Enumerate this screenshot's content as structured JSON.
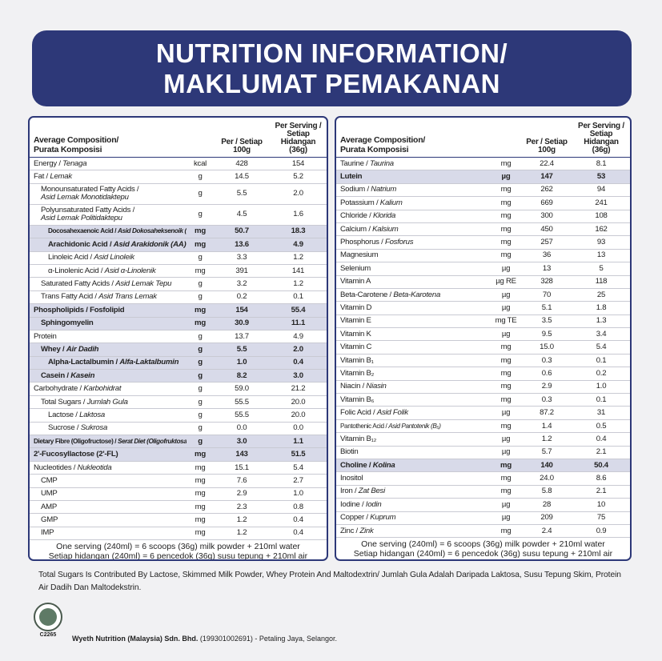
{
  "header": {
    "line1": "NUTRITION INFORMATION/",
    "line2": "MAKLUMAT PEMAKANAN"
  },
  "tables": [
    {
      "head": {
        "name1": "Average Composition/",
        "name2": "Purata Komposisi",
        "per100": "Per / Setiap 100g",
        "serving": "Per Serving / Setiap Hidangan (36g)"
      },
      "rows": [
        {
          "name": "Energy /",
          "ms": "Tenaga",
          "unit": "kcal",
          "per100": "428",
          "serving": "154"
        },
        {
          "name": "Fat /",
          "ms": "Lemak",
          "unit": "g",
          "per100": "14.5",
          "serving": "5.2"
        },
        {
          "name": "Monounsaturated Fatty Acids /",
          "ms": "Asid Lemak Monotidaktepu",
          "unit": "g",
          "per100": "5.5",
          "serving": "2.0"
        },
        {
          "name": "Polyunsaturated Fatty Acids /",
          "ms": "Asid Lemak Politidaktepu",
          "unit": "g",
          "per100": "4.5",
          "serving": "1.6"
        },
        {
          "name": "Docosahexaenoic Acid /",
          "ms": "Asid Dokosaheksenoik (DHA)",
          "unit": "mg",
          "per100": "50.7",
          "serving": "18.3"
        },
        {
          "name": "Arachidonic Acid /",
          "ms": "Asid Arakidonik (AA)",
          "unit": "mg",
          "per100": "13.6",
          "serving": "4.9"
        },
        {
          "name": "Linoleic Acid /",
          "ms": "Asid Linoleik",
          "unit": "g",
          "per100": "3.3",
          "serving": "1.2"
        },
        {
          "name": "α-Linolenic Acid /",
          "ms": "Asid α-Linolenik",
          "unit": "mg",
          "per100": "391",
          "serving": "141"
        },
        {
          "name": "Saturated Fatty Acids /",
          "ms": "Asid Lemak Tepu",
          "unit": "g",
          "per100": "3.2",
          "serving": "1.2"
        },
        {
          "name": "Trans Fatty Acid /",
          "ms": "Asid Trans Lemak",
          "unit": "g",
          "per100": "0.2",
          "serving": "0.1"
        },
        {
          "name": "Phospholipids / Fosfolipid",
          "unit": "mg",
          "per100": "154",
          "serving": "55.4"
        },
        {
          "name": "Sphingomyelin",
          "unit": "mg",
          "per100": "30.9",
          "serving": "11.1"
        },
        {
          "name": "Protein",
          "unit": "g",
          "per100": "13.7",
          "serving": "4.9"
        },
        {
          "name": "Whey /",
          "ms": "Air Dadih",
          "unit": "g",
          "per100": "5.5",
          "serving": "2.0"
        },
        {
          "name": "Alpha-Lactalbumin /",
          "ms": "Alfa-Laktalbumin",
          "unit": "g",
          "per100": "1.0",
          "serving": "0.4"
        },
        {
          "name": "Casein /",
          "ms": "Kasein",
          "unit": "g",
          "per100": "8.2",
          "serving": "3.0"
        },
        {
          "name": "Carbohydrate /",
          "ms": "Karbohidrat",
          "unit": "g",
          "per100": "59.0",
          "serving": "21.2"
        },
        {
          "name": "Total Sugars /",
          "ms": "Jumlah Gula",
          "unit": "g",
          "per100": "55.5",
          "serving": "20.0"
        },
        {
          "name": "Lactose /",
          "ms": "Laktosa",
          "unit": "g",
          "per100": "55.5",
          "serving": "20.0"
        },
        {
          "name": "Sucrose /",
          "ms": "Sukrosa",
          "unit": "g",
          "per100": "0.0",
          "serving": "0.0"
        },
        {
          "name": "Dietary Fibre (Oligofructose) /",
          "ms": "Serat Diet (Oligofruktosa)",
          "unit": "g",
          "per100": "3.0",
          "serving": "1.1"
        },
        {
          "name": "2'-Fucosyllactose (2'-FL)",
          "unit": "mg",
          "per100": "143",
          "serving": "51.5"
        },
        {
          "name": "Nucleotides /",
          "ms": "Nukleotida",
          "unit": "mg",
          "per100": "15.1",
          "serving": "5.4"
        },
        {
          "name": "CMP",
          "unit": "mg",
          "per100": "7.6",
          "serving": "2.7"
        },
        {
          "name": "UMP",
          "unit": "mg",
          "per100": "2.9",
          "serving": "1.0"
        },
        {
          "name": "AMP",
          "unit": "mg",
          "per100": "2.3",
          "serving": "0.8"
        },
        {
          "name": "GMP",
          "unit": "mg",
          "per100": "1.2",
          "serving": "0.4"
        },
        {
          "name": "IMP",
          "unit": "mg",
          "per100": "1.2",
          "serving": "0.4"
        }
      ],
      "foot1": "One serving (240ml) = 6 scoops (36g) milk powder + 210ml water",
      "foot2": "Setiap hidangan (240ml) = 6 pencedok (36g) susu tepung + 210ml air"
    },
    {
      "head": {
        "name1": "Average Composition/",
        "name2": "Purata Komposisi",
        "per100": "Per / Setiap 100g",
        "serving": "Per Serving / Setiap Hidangan (36g)"
      },
      "rows": [
        {
          "name": "Taurine /",
          "ms": "Taurina",
          "unit": "mg",
          "per100": "22.4",
          "serving": "8.1"
        },
        {
          "name": "Lutein",
          "unit": "µg",
          "per100": "147",
          "serving": "53"
        },
        {
          "name": "Sodium /",
          "ms": "Natrium",
          "unit": "mg",
          "per100": "262",
          "serving": "94"
        },
        {
          "name": "Potassium /",
          "ms": "Kalium",
          "unit": "mg",
          "per100": "669",
          "serving": "241"
        },
        {
          "name": "Chloride /",
          "ms": "Klorida",
          "unit": "mg",
          "per100": "300",
          "serving": "108"
        },
        {
          "name": "Calcium /",
          "ms": "Kalsium",
          "unit": "mg",
          "per100": "450",
          "serving": "162"
        },
        {
          "name": "Phosphorus /",
          "ms": "Fosforus",
          "unit": "mg",
          "per100": "257",
          "serving": "93"
        },
        {
          "name": "Magnesium",
          "unit": "mg",
          "per100": "36",
          "serving": "13"
        },
        {
          "name": "Selenium",
          "unit": "µg",
          "per100": "13",
          "serving": "5"
        },
        {
          "name": "Vitamin A",
          "unit": "µg RE",
          "per100": "328",
          "serving": "118"
        },
        {
          "name": "Beta-Carotene /",
          "ms": "Beta-Karotena",
          "unit": "µg",
          "per100": "70",
          "serving": "25"
        },
        {
          "name": "Vitamin D",
          "unit": "µg",
          "per100": "5.1",
          "serving": "1.8"
        },
        {
          "name": "Vitamin E",
          "unit": "mg TE",
          "per100": "3.5",
          "serving": "1.3"
        },
        {
          "name": "Vitamin K",
          "unit": "µg",
          "per100": "9.5",
          "serving": "3.4"
        },
        {
          "name": "Vitamin C",
          "unit": "mg",
          "per100": "15.0",
          "serving": "5.4"
        },
        {
          "name": "Vitamin B₁",
          "unit": "mg",
          "per100": "0.3",
          "serving": "0.1"
        },
        {
          "name": "Vitamin B₂",
          "unit": "mg",
          "per100": "0.6",
          "serving": "0.2"
        },
        {
          "name": "Niacin /",
          "ms": "Niasin",
          "unit": "mg",
          "per100": "2.9",
          "serving": "1.0"
        },
        {
          "name": "Vitamin B₆",
          "unit": "mg",
          "per100": "0.3",
          "serving": "0.1"
        },
        {
          "name": "Folic Acid /",
          "ms": "Asid Folik",
          "unit": "µg",
          "per100": "87.2",
          "serving": "31"
        },
        {
          "name": "Pantothenic Acid /",
          "ms": "Asid Pantotenik (B₅)",
          "unit": "mg",
          "per100": "1.4",
          "serving": "0.5"
        },
        {
          "name": "Vitamin B₁₂",
          "unit": "µg",
          "per100": "1.2",
          "serving": "0.4"
        },
        {
          "name": "Biotin",
          "unit": "µg",
          "per100": "5.7",
          "serving": "2.1"
        },
        {
          "name": "Choline /",
          "ms": "Kolina",
          "unit": "mg",
          "per100": "140",
          "serving": "50.4"
        },
        {
          "name": "Inositol",
          "unit": "mg",
          "per100": "24.0",
          "serving": "8.6"
        },
        {
          "name": "Iron /",
          "ms": "Zat Besi",
          "unit": "mg",
          "per100": "5.8",
          "serving": "2.1"
        },
        {
          "name": "Iodine /",
          "ms": "Iodin",
          "unit": "µg",
          "per100": "28",
          "serving": "10"
        },
        {
          "name": "Copper /",
          "ms": "Kuprum",
          "unit": "µg",
          "per100": "209",
          "serving": "75"
        },
        {
          "name": "Zinc /",
          "ms": "Zink",
          "unit": "mg",
          "per100": "2.4",
          "serving": "0.9"
        }
      ],
      "foot1": "One serving (240ml) = 6 scoops (36g) milk powder + 210ml water",
      "foot2": "Setiap hidangan (240ml) = 6 pencedok (36g) susu tepung + 210ml air"
    }
  ],
  "note": "Total Sugars Is Contributed By Lactose, Skimmed Milk Powder, Whey Protein And Maltodextrin/ Jumlah Gula Adalah Daripada Laktosa, Susu Tepung Skim, Protein Air Dadih Dan Maltodekstrin.",
  "logo_code": "C2265",
  "company": {
    "name": "Wyeth Nutrition (Malaysia) Sdn. Bhd.",
    "rest": "(199301002691) - Petaling Jaya, Selangor."
  }
}
